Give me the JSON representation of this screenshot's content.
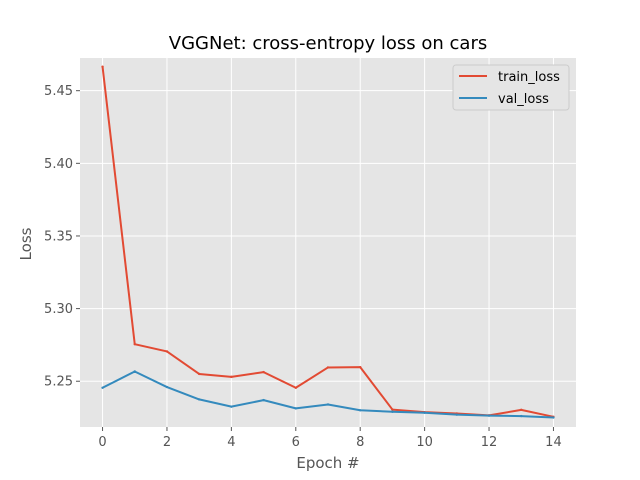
{
  "chart_data": {
    "type": "line",
    "title": "VGGNet: cross-entropy loss on cars",
    "xlabel": "Epoch #",
    "ylabel": "Loss",
    "x": [
      0,
      1,
      2,
      3,
      4,
      5,
      6,
      7,
      8,
      9,
      10,
      11,
      12,
      13,
      14
    ],
    "xlim": [
      -0.7,
      14.7
    ],
    "ylim": [
      5.2185,
      5.4725
    ],
    "xticks": [
      0,
      2,
      4,
      6,
      8,
      10,
      12,
      14
    ],
    "xtick_labels": [
      "0",
      "2",
      "4",
      "6",
      "8",
      "10",
      "12",
      "14"
    ],
    "yticks": [
      5.25,
      5.3,
      5.35,
      5.4,
      5.45
    ],
    "ytick_labels": [
      "5.25",
      "5.30",
      "5.35",
      "5.40",
      "5.45"
    ],
    "grid": true,
    "legend_position": "top-right",
    "series": [
      {
        "name": "train_loss",
        "color": "#E24A33",
        "values": [
          5.4665,
          5.2755,
          5.2705,
          5.255,
          5.253,
          5.2563,
          5.2455,
          5.2595,
          5.2597,
          5.2305,
          5.2287,
          5.2278,
          5.2265,
          5.2303,
          5.2255
        ]
      },
      {
        "name": "val_loss",
        "color": "#348ABD",
        "values": [
          5.2455,
          5.2567,
          5.246,
          5.2375,
          5.2325,
          5.237,
          5.2313,
          5.234,
          5.23,
          5.229,
          5.2283,
          5.227,
          5.2263,
          5.226,
          5.225
        ]
      }
    ]
  }
}
